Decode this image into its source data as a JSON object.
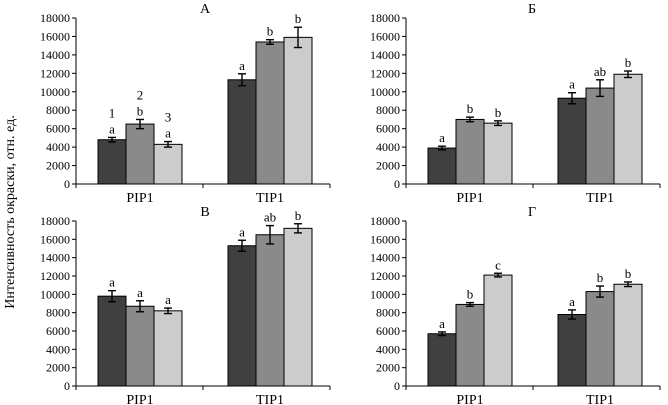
{
  "figure": {
    "ylabel": "Интенсивность окраски, отн. ед.",
    "colors": [
      "#404040",
      "#8a8a8a",
      "#cccccc"
    ]
  },
  "chart_data": [
    {
      "type": "bar",
      "title": "А",
      "categories": [
        "PIP1",
        "TIP1"
      ],
      "ylim": [
        0,
        18000
      ],
      "yticks": [
        "0",
        "2000",
        "4000",
        "6000",
        "8000",
        "10000",
        "12000",
        "14000",
        "16000",
        "18000"
      ],
      "series": [
        {
          "name": "1",
          "values": [
            4800,
            11300
          ],
          "errors": [
            250,
            650
          ],
          "labels": [
            "a",
            "a"
          ]
        },
        {
          "name": "2",
          "values": [
            6500,
            15400
          ],
          "errors": [
            500,
            250
          ],
          "labels": [
            "b",
            "b"
          ]
        },
        {
          "name": "3",
          "values": [
            4300,
            15900
          ],
          "errors": [
            300,
            1100
          ],
          "labels": [
            "a",
            "b"
          ]
        }
      ],
      "series_markers": [
        "1",
        "2",
        "3"
      ]
    },
    {
      "type": "bar",
      "title": "Б",
      "categories": [
        "PIP1",
        "TIP1"
      ],
      "ylim": [
        0,
        18000
      ],
      "yticks": [
        "0",
        "2000",
        "4000",
        "6000",
        "8000",
        "10000",
        "12000",
        "14000",
        "16000",
        "18000"
      ],
      "series": [
        {
          "name": "1",
          "values": [
            3900,
            9300
          ],
          "errors": [
            200,
            600
          ],
          "labels": [
            "a",
            "a"
          ]
        },
        {
          "name": "2",
          "values": [
            7000,
            10400
          ],
          "errors": [
            250,
            900
          ],
          "labels": [
            "b",
            "ab"
          ]
        },
        {
          "name": "3",
          "values": [
            6600,
            11900
          ],
          "errors": [
            250,
            350
          ],
          "labels": [
            "b",
            "b"
          ]
        }
      ]
    },
    {
      "type": "bar",
      "title": "В",
      "categories": [
        "PIP1",
        "TIP1"
      ],
      "ylim": [
        0,
        18000
      ],
      "yticks": [
        "0",
        "2000",
        "4000",
        "6000",
        "8000",
        "10000",
        "12000",
        "14000",
        "16000",
        "18000"
      ],
      "series": [
        {
          "name": "1",
          "values": [
            9800,
            15300
          ],
          "errors": [
            600,
            600
          ],
          "labels": [
            "a",
            "a"
          ]
        },
        {
          "name": "2",
          "values": [
            8700,
            16500
          ],
          "errors": [
            600,
            1000
          ],
          "labels": [
            "a",
            "ab"
          ]
        },
        {
          "name": "3",
          "values": [
            8200,
            17200
          ],
          "errors": [
            300,
            500
          ],
          "labels": [
            "a",
            "b"
          ]
        }
      ]
    },
    {
      "type": "bar",
      "title": "Г",
      "categories": [
        "PIP1",
        "TIP1"
      ],
      "ylim": [
        0,
        18000
      ],
      "yticks": [
        "0",
        "2000",
        "4000",
        "6000",
        "8000",
        "10000",
        "12000",
        "14000",
        "16000",
        "18000"
      ],
      "series": [
        {
          "name": "1",
          "values": [
            5700,
            7800
          ],
          "errors": [
            200,
            500
          ],
          "labels": [
            "a",
            "a"
          ]
        },
        {
          "name": "2",
          "values": [
            8900,
            10300
          ],
          "errors": [
            200,
            600
          ],
          "labels": [
            "b",
            "b"
          ]
        },
        {
          "name": "3",
          "values": [
            12100,
            11100
          ],
          "errors": [
            200,
            250
          ],
          "labels": [
            "c",
            "b"
          ]
        }
      ]
    }
  ]
}
